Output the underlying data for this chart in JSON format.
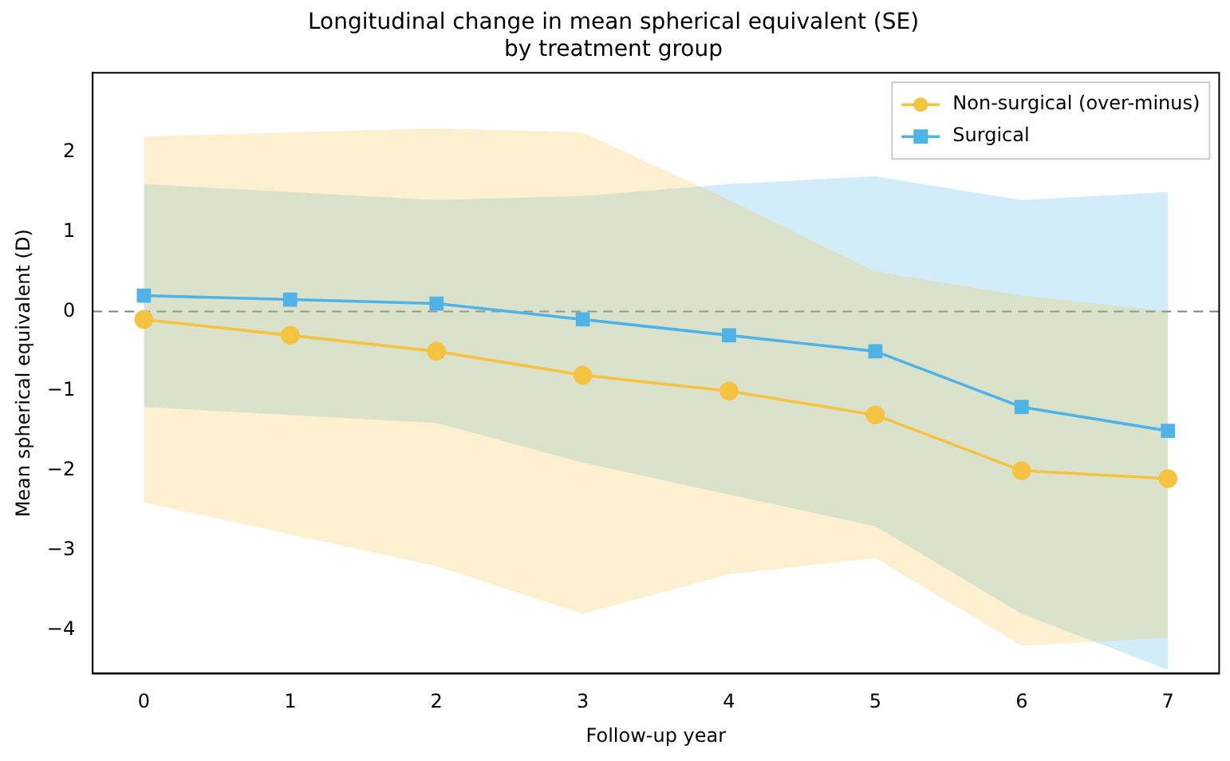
{
  "chart_data": {
    "type": "line",
    "title": "Longitudinal change in mean spherical equivalent (SE)\nby treatment group",
    "xlabel": "Follow-up year",
    "ylabel": "Mean spherical equivalent (D)",
    "x": [
      0,
      1,
      2,
      3,
      4,
      5,
      6,
      7
    ],
    "series": [
      {
        "name": "Non-surgical (over-minus)",
        "color": "#f5c242",
        "marker": "circle",
        "values": [
          -0.1,
          -0.3,
          -0.5,
          -0.8,
          -1.0,
          -1.3,
          -2.0,
          -2.1
        ],
        "lower": [
          -2.4,
          -2.8,
          -3.2,
          -3.8,
          -3.3,
          -3.1,
          -4.2,
          -4.1
        ],
        "upper": [
          2.2,
          2.25,
          2.3,
          2.25,
          1.4,
          0.5,
          0.2,
          0.0
        ]
      },
      {
        "name": "Surgical",
        "color": "#4fb3e8",
        "marker": "square",
        "values": [
          0.2,
          0.15,
          0.1,
          -0.1,
          -0.3,
          -0.5,
          -1.2,
          -1.5
        ],
        "lower": [
          -1.2,
          -1.3,
          -1.4,
          -1.9,
          -2.3,
          -2.7,
          -3.8,
          -4.5
        ],
        "upper": [
          1.6,
          1.5,
          1.4,
          1.45,
          1.6,
          1.7,
          1.4,
          1.5
        ]
      }
    ],
    "xlim": [
      -0.35,
      7.35
    ],
    "xticks": [
      0,
      1,
      2,
      3,
      4,
      5,
      6,
      7
    ],
    "ylim": [
      -4.55,
      3.0
    ],
    "yticks": [
      -4,
      -3,
      -2,
      -1,
      0,
      1,
      2
    ],
    "ref_lines": [
      {
        "axis": "y",
        "value": 0,
        "color": "#808080",
        "line_style": "dashed"
      }
    ],
    "legend": "top right",
    "grid": false,
    "line_style": "solid"
  }
}
